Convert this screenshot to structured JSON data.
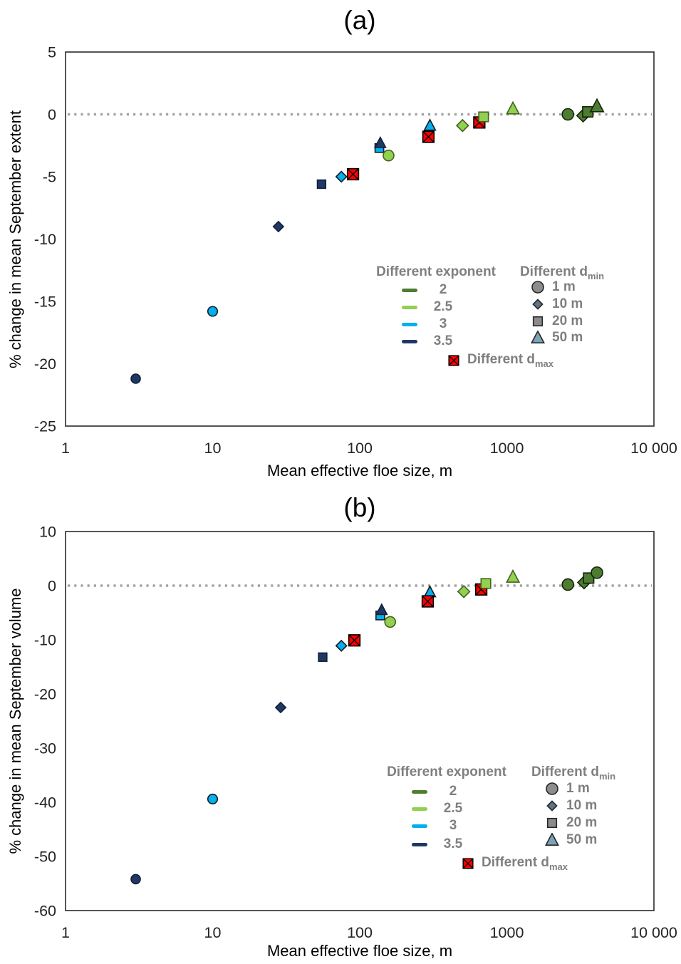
{
  "page": {
    "background": "#ffffff"
  },
  "legend": {
    "exponent_title": "Different exponent",
    "exponent_items": [
      {
        "label": "2",
        "color": "#4e7c31"
      },
      {
        "label": "2.5",
        "color": "#92d050"
      },
      {
        "label": "3",
        "color": "#00b0f0"
      },
      {
        "label": "3.5",
        "color": "#1f3864"
      }
    ],
    "dmin_title": {
      "prefix": "Different d",
      "sub": "min"
    },
    "dmin_items": [
      {
        "label": "1 m",
        "marker": "circle",
        "color": "#8c8c8c",
        "stroke": "#262626",
        "size": 16
      },
      {
        "label": "10 m",
        "marker": "diamond",
        "color": "#5f7384",
        "stroke": "#262626",
        "size": 12
      },
      {
        "label": "20 m",
        "marker": "square",
        "color": "#8c8c8c",
        "stroke": "#262626",
        "size": 14
      },
      {
        "label": "50 m",
        "marker": "triangle",
        "color": "#7ca3b8",
        "stroke": "#262626",
        "size": 15
      }
    ],
    "dmax_title": {
      "prefix": "Different d",
      "sub": "max"
    },
    "dmax_marker": {
      "marker": "square-x",
      "color": "#ff0000",
      "stroke": "#000000",
      "size": 16
    }
  },
  "chart_data": [
    {
      "id": "a",
      "type": "scatter",
      "title": "(a)",
      "xlabel": "Mean effective floe size, m",
      "ylabel": "% change in mean September extent",
      "x_scale": "log",
      "xlim": [
        1,
        10000
      ],
      "ylim": [
        -25,
        5
      ],
      "grid": "off",
      "zero_line": 0,
      "xticks": {
        "values": [
          1,
          10,
          100,
          1000,
          10000
        ],
        "labels": [
          "1",
          "10",
          "100",
          "1000",
          "10 000"
        ]
      },
      "yticks": {
        "values": [
          5,
          0,
          -5,
          -10,
          -15,
          -20,
          -25
        ],
        "labels": [
          "5",
          "0",
          "-5",
          "-10",
          "-15",
          "-20",
          "-25"
        ]
      },
      "series": [
        {
          "name": "exponent 3",
          "color": "#00b0f0",
          "stroke": "#1a1a1a",
          "size": 13.5,
          "points": [
            {
              "x": 10,
              "y": -15.8,
              "m": "circle"
            },
            {
              "x": 75,
              "y": -5.0,
              "m": "diamond"
            },
            {
              "x": 136,
              "y": -2.7,
              "m": "square"
            },
            {
              "x": 300,
              "y": -0.9,
              "m": "triangle"
            }
          ]
        },
        {
          "name": "exponent 3.5",
          "color": "#1f3864",
          "stroke": "#101f38",
          "size": 13,
          "points": [
            {
              "x": 3,
              "y": -21.2,
              "m": "circle"
            },
            {
              "x": 28,
              "y": -9.0,
              "m": "diamond"
            },
            {
              "x": 55,
              "y": -5.6,
              "m": "square"
            },
            {
              "x": 138,
              "y": -2.3,
              "m": "triangle"
            }
          ]
        },
        {
          "name": "different dmax",
          "color": "#ff0000",
          "stroke": "#000000",
          "size": 16.5,
          "points": [
            {
              "x": 90,
              "y": -4.8,
              "m": "square-x"
            },
            {
              "x": 293,
              "y": -1.8,
              "m": "square-x"
            },
            {
              "x": 650,
              "y": -0.65,
              "m": "square-x"
            }
          ]
        },
        {
          "name": "exponent 2.5",
          "color": "#92d050",
          "stroke": "#44611f",
          "size": 15,
          "points": [
            {
              "x": 157,
              "y": -3.3,
              "m": "circle"
            },
            {
              "x": 500,
              "y": -0.9,
              "m": "diamond"
            },
            {
              "x": 695,
              "y": -0.2,
              "m": "square"
            },
            {
              "x": 1100,
              "y": 0.45,
              "m": "triangle"
            }
          ]
        },
        {
          "name": "exponent 2",
          "color": "#4e7c31",
          "stroke": "#14240c",
          "size": 16,
          "points": [
            {
              "x": 2600,
              "y": 0.0,
              "m": "circle"
            },
            {
              "x": 3300,
              "y": -0.1,
              "m": "diamond"
            },
            {
              "x": 3550,
              "y": 0.2,
              "m": "square"
            },
            {
              "x": 4100,
              "y": 0.65,
              "m": "triangle"
            }
          ]
        }
      ]
    },
    {
      "id": "b",
      "type": "scatter",
      "title": "(b)",
      "xlabel": "Mean effective floe size, m",
      "ylabel": "% change in mean September volume",
      "x_scale": "log",
      "xlim": [
        1,
        10000
      ],
      "ylim": [
        -60,
        10
      ],
      "grid": "off",
      "zero_line": 0,
      "xticks": {
        "values": [
          1,
          10,
          100,
          1000,
          10000
        ],
        "labels": [
          "1",
          "10",
          "100",
          "1000",
          "10 000"
        ]
      },
      "yticks": {
        "values": [
          10,
          0,
          -10,
          -20,
          -30,
          -40,
          -50,
          -60
        ],
        "labels": [
          "10",
          "0",
          "-10",
          "-20",
          "-30",
          "-40",
          "-50",
          "-60"
        ]
      },
      "series": [
        {
          "name": "exponent 3",
          "color": "#00b0f0",
          "stroke": "#1a1a1a",
          "size": 13.5,
          "points": [
            {
              "x": 10,
              "y": -39.4,
              "m": "circle"
            },
            {
              "x": 75,
              "y": -11.1,
              "m": "diamond"
            },
            {
              "x": 138,
              "y": -5.5,
              "m": "square"
            },
            {
              "x": 300,
              "y": -1.2,
              "m": "triangle"
            }
          ]
        },
        {
          "name": "exponent 3.5",
          "color": "#1f3864",
          "stroke": "#101f38",
          "size": 13,
          "points": [
            {
              "x": 3,
              "y": -54.2,
              "m": "circle"
            },
            {
              "x": 29,
              "y": -22.5,
              "m": "diamond"
            },
            {
              "x": 56,
              "y": -13.2,
              "m": "square"
            },
            {
              "x": 141,
              "y": -4.5,
              "m": "triangle"
            }
          ]
        },
        {
          "name": "different dmax",
          "color": "#ff0000",
          "stroke": "#000000",
          "size": 16.5,
          "points": [
            {
              "x": 92,
              "y": -10.1,
              "m": "square-x"
            },
            {
              "x": 290,
              "y": -2.9,
              "m": "square-x"
            },
            {
              "x": 670,
              "y": -0.7,
              "m": "square-x"
            }
          ]
        },
        {
          "name": "exponent 2.5",
          "color": "#92d050",
          "stroke": "#44611f",
          "size": 15,
          "points": [
            {
              "x": 161,
              "y": -6.7,
              "m": "circle"
            },
            {
              "x": 510,
              "y": -1.1,
              "m": "diamond"
            },
            {
              "x": 720,
              "y": 0.4,
              "m": "square"
            },
            {
              "x": 1100,
              "y": 1.6,
              "m": "triangle"
            }
          ]
        },
        {
          "name": "exponent 2",
          "color": "#4e7c31",
          "stroke": "#14240c",
          "size": 16,
          "points": [
            {
              "x": 2600,
              "y": 0.2,
              "m": "circle"
            },
            {
              "x": 3350,
              "y": 0.6,
              "m": "diamond"
            },
            {
              "x": 3600,
              "y": 1.4,
              "m": "square"
            },
            {
              "x": 4100,
              "y": 2.4,
              "m": "circle"
            }
          ]
        }
      ]
    }
  ]
}
